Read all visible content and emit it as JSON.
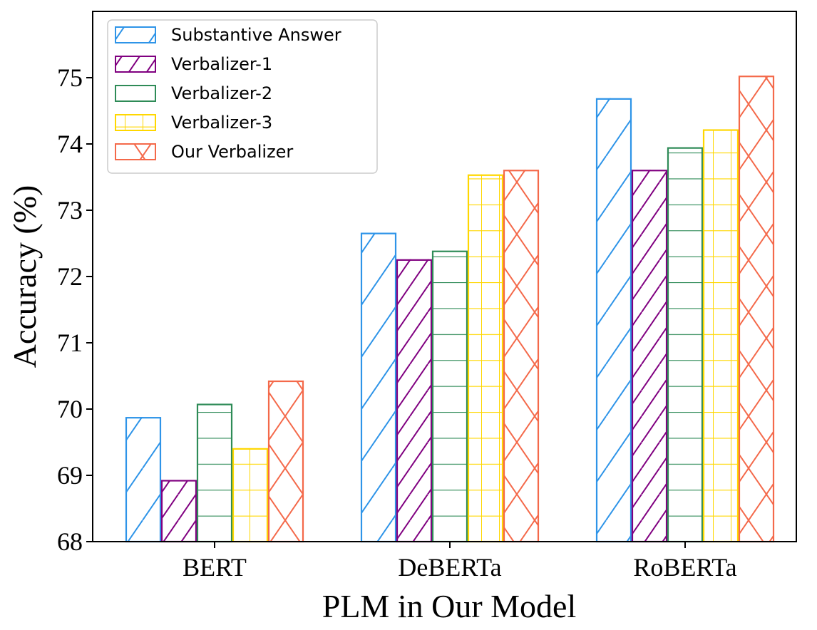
{
  "chart_data": {
    "type": "bar",
    "title": "",
    "xlabel": "PLM in Our Model",
    "ylabel": "Accuracy (%)",
    "categories": [
      "BERT",
      "DeBERTa",
      "RoBERTa"
    ],
    "ylim": [
      68,
      76
    ],
    "yticks": [
      68,
      69,
      70,
      71,
      72,
      73,
      74,
      75
    ],
    "grid": false,
    "legend_position": "top-left",
    "series": [
      {
        "name": "Substantive Answer",
        "values": [
          69.88,
          72.66,
          74.69
        ],
        "color": "#2e94e8",
        "hatch": "slash"
      },
      {
        "name": "Verbalizer-1",
        "values": [
          68.93,
          72.26,
          73.61
        ],
        "color": "#800080",
        "hatch": "slash-dense"
      },
      {
        "name": "Verbalizer-2",
        "values": [
          70.08,
          72.39,
          73.95
        ],
        "color": "#2e8b57",
        "hatch": "horizontal"
      },
      {
        "name": "Verbalizer-3",
        "values": [
          69.41,
          73.54,
          74.22
        ],
        "color": "#ffd700",
        "hatch": "grid"
      },
      {
        "name": "Our Verbalizer",
        "values": [
          70.43,
          73.61,
          75.03
        ],
        "color": "#f4694a",
        "hatch": "crosshatch"
      }
    ]
  }
}
